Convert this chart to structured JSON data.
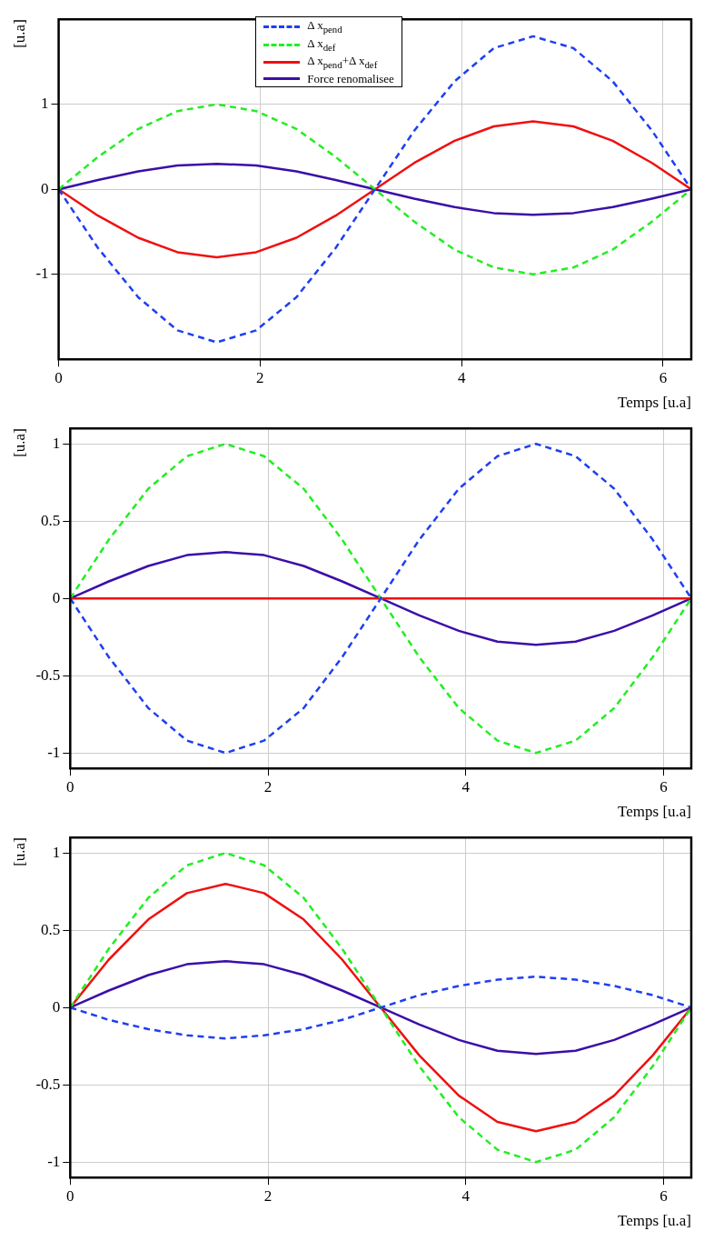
{
  "chart_data": [
    {
      "type": "line",
      "xlabel": "Temps [u.a]",
      "ylabel": "[u.a]",
      "xlim": [
        0,
        6.28
      ],
      "xticks": [
        0,
        2,
        4,
        6
      ],
      "ylim": [
        -2,
        2
      ],
      "yticks": [
        -1,
        0,
        1
      ],
      "grid": true,
      "legend": "top",
      "x": [
        0,
        0.39,
        0.79,
        1.18,
        1.57,
        1.96,
        2.36,
        2.75,
        3.14,
        3.53,
        3.93,
        4.32,
        4.71,
        5.11,
        5.5,
        5.89,
        6.28
      ],
      "series": [
        {
          "name": "Δ x$_{pend}$",
          "color": "#1f3ff0",
          "line_style": "dashed",
          "values": [
            0,
            -0.69,
            -1.27,
            -1.66,
            -1.8,
            -1.66,
            -1.27,
            -0.69,
            0,
            0.69,
            1.27,
            1.66,
            1.8,
            1.66,
            1.27,
            0.69,
            0
          ]
        },
        {
          "name": "Δ x$_{def}$",
          "color": "#22ee22",
          "line_style": "dashed",
          "values": [
            0,
            0.38,
            0.71,
            0.92,
            1,
            0.92,
            0.71,
            0.38,
            0,
            -0.38,
            -0.71,
            -0.92,
            -1,
            -0.92,
            -0.71,
            -0.38,
            0
          ]
        },
        {
          "name": "Δ x$_{pend}$+Δ x$_{def}$",
          "color": "#f01010",
          "line_style": "solid",
          "values": [
            0,
            -0.31,
            -0.57,
            -0.74,
            -0.8,
            -0.74,
            -0.57,
            -0.31,
            0,
            0.31,
            0.57,
            0.74,
            0.8,
            0.74,
            0.57,
            0.31,
            0
          ]
        },
        {
          "name": "Force renomalisee",
          "color": "#3a0fa8",
          "line_style": "solid",
          "values": [
            0,
            0.11,
            0.21,
            0.28,
            0.3,
            0.28,
            0.21,
            0.11,
            0,
            -0.11,
            -0.21,
            -0.28,
            -0.3,
            -0.28,
            -0.21,
            -0.11,
            0
          ]
        }
      ]
    },
    {
      "type": "line",
      "xlabel": "Temps [u.a]",
      "ylabel": "[u.a]",
      "xlim": [
        0,
        6.28
      ],
      "xticks": [
        0,
        2,
        4,
        6
      ],
      "ylim": [
        -1.1,
        1.1
      ],
      "yticks": [
        -1,
        -0.5,
        0,
        0.5,
        1
      ],
      "grid": true,
      "x": [
        0,
        0.39,
        0.79,
        1.18,
        1.57,
        1.96,
        2.36,
        2.75,
        3.14,
        3.53,
        3.93,
        4.32,
        4.71,
        5.11,
        5.5,
        5.89,
        6.28
      ],
      "series": [
        {
          "color": "#1f3ff0",
          "line_style": "dashed",
          "values": [
            0,
            -0.38,
            -0.71,
            -0.92,
            -1,
            -0.92,
            -0.71,
            -0.38,
            0,
            0.38,
            0.71,
            0.92,
            1,
            0.92,
            0.71,
            0.38,
            0
          ]
        },
        {
          "color": "#22ee22",
          "line_style": "dashed",
          "values": [
            0,
            0.38,
            0.71,
            0.92,
            1,
            0.92,
            0.71,
            0.38,
            0,
            -0.38,
            -0.71,
            -0.92,
            -1,
            -0.92,
            -0.71,
            -0.38,
            0
          ]
        },
        {
          "color": "#f01010",
          "line_style": "solid",
          "values": [
            0,
            0,
            0,
            0,
            0,
            0,
            0,
            0,
            0,
            0,
            0,
            0,
            0,
            0,
            0,
            0,
            0
          ]
        },
        {
          "color": "#3a0fa8",
          "line_style": "solid",
          "values": [
            0,
            0.11,
            0.21,
            0.28,
            0.3,
            0.28,
            0.21,
            0.11,
            0,
            -0.11,
            -0.21,
            -0.28,
            -0.3,
            -0.28,
            -0.21,
            -0.11,
            0
          ]
        }
      ]
    },
    {
      "type": "line",
      "xlabel": "Temps [u.a]",
      "ylabel": "[u.a]",
      "xlim": [
        0,
        6.28
      ],
      "xticks": [
        0,
        2,
        4,
        6
      ],
      "ylim": [
        -1.1,
        1.1
      ],
      "yticks": [
        -1,
        -0.5,
        0,
        0.5,
        1
      ],
      "grid": true,
      "x": [
        0,
        0.39,
        0.79,
        1.18,
        1.57,
        1.96,
        2.36,
        2.75,
        3.14,
        3.53,
        3.93,
        4.32,
        4.71,
        5.11,
        5.5,
        5.89,
        6.28
      ],
      "series": [
        {
          "color": "#1f3ff0",
          "line_style": "dashed",
          "values": [
            0,
            -0.08,
            -0.14,
            -0.18,
            -0.2,
            -0.18,
            -0.14,
            -0.08,
            0,
            0.08,
            0.14,
            0.18,
            0.2,
            0.18,
            0.14,
            0.08,
            0
          ]
        },
        {
          "color": "#22ee22",
          "line_style": "dashed",
          "values": [
            0,
            0.38,
            0.71,
            0.92,
            1,
            0.92,
            0.71,
            0.38,
            0,
            -0.38,
            -0.71,
            -0.92,
            -1,
            -0.92,
            -0.71,
            -0.38,
            0
          ]
        },
        {
          "color": "#f01010",
          "line_style": "solid",
          "values": [
            0,
            0.31,
            0.57,
            0.74,
            0.8,
            0.74,
            0.57,
            0.31,
            0,
            -0.31,
            -0.57,
            -0.74,
            -0.8,
            -0.74,
            -0.57,
            -0.31,
            0
          ]
        },
        {
          "color": "#3a0fa8",
          "line_style": "solid",
          "values": [
            0,
            0.11,
            0.21,
            0.28,
            0.3,
            0.28,
            0.21,
            0.11,
            0,
            -0.11,
            -0.21,
            -0.28,
            -0.3,
            -0.28,
            -0.21,
            -0.11,
            0
          ]
        }
      ]
    }
  ]
}
